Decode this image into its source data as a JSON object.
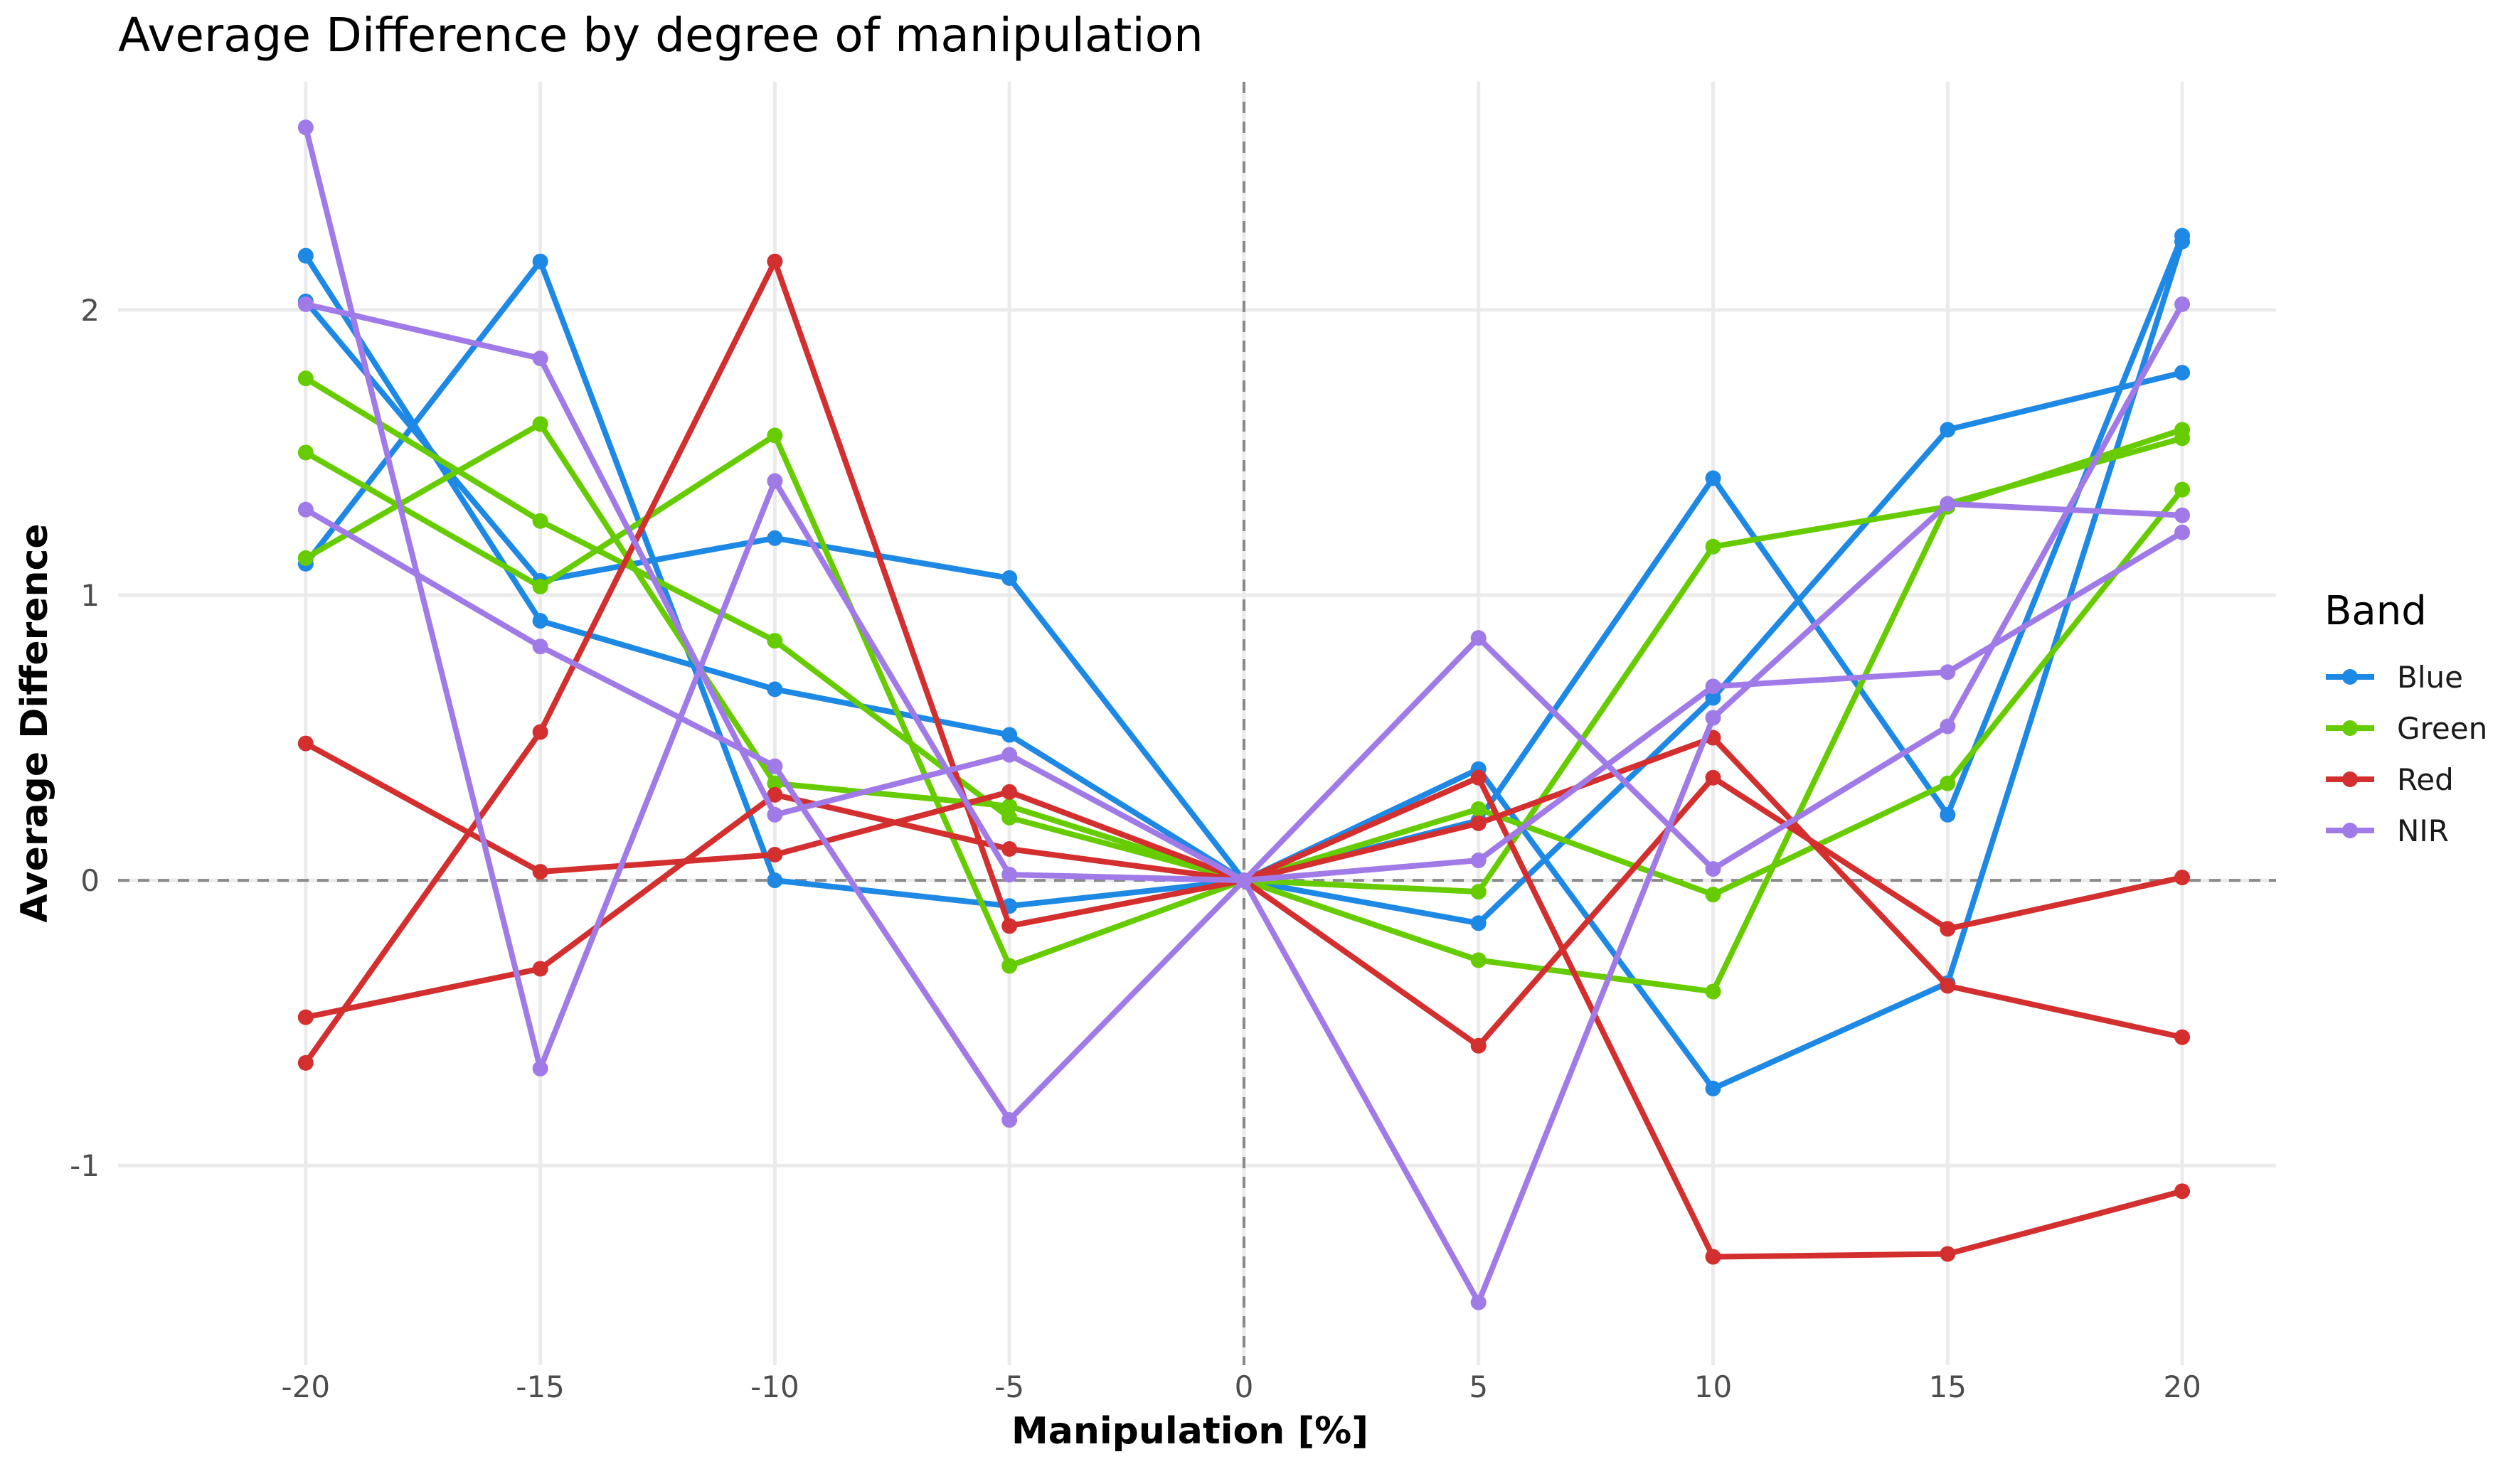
{
  "chart_data": {
    "type": "line",
    "title": "Average Difference by degree of manipulation",
    "xlabel": "Manipulation [%]",
    "ylabel": "Average Difference",
    "x": [
      -20,
      -15,
      -10,
      -5,
      0,
      5,
      10,
      15,
      20
    ],
    "x_ticks": [
      "-20",
      "-15",
      "-10",
      "-5",
      "0",
      "5",
      "10",
      "15",
      "20"
    ],
    "y_ticks": [
      {
        "value": -1,
        "label": "-1"
      },
      {
        "value": 0,
        "label": "0"
      },
      {
        "value": 1,
        "label": "1"
      },
      {
        "value": 2,
        "label": "2"
      }
    ],
    "xlim": [
      -24,
      22
    ],
    "ylim": [
      -1.7,
      2.8
    ],
    "grid": true,
    "reference_lines": {
      "x": 0,
      "y": 0
    },
    "legend": {
      "title": "Band",
      "placement": "right",
      "entries": [
        {
          "label": "Blue",
          "color": "#1e88e5"
        },
        {
          "label": "Green",
          "color": "#66cc00"
        },
        {
          "label": "Red",
          "color": "#d32f2f"
        },
        {
          "label": "NIR",
          "color": "#a07be8"
        }
      ]
    },
    "series": [
      {
        "band": "Blue",
        "color": "#1e88e5",
        "values": [
          2.19,
          0.91,
          0.67,
          0.51,
          0,
          0.21,
          1.41,
          0.23,
          2.26
        ]
      },
      {
        "band": "Blue",
        "color": "#1e88e5",
        "values": [
          2.03,
          1.05,
          1.2,
          1.06,
          0,
          -0.15,
          0.64,
          1.58,
          1.78
        ]
      },
      {
        "band": "Blue",
        "color": "#1e88e5",
        "values": [
          1.11,
          2.17,
          0.0,
          -0.09,
          0,
          0.39,
          -0.73,
          -0.36,
          2.24
        ]
      },
      {
        "band": "Green",
        "color": "#66cc00",
        "values": [
          1.76,
          1.26,
          0.84,
          0.22,
          0,
          -0.04,
          1.17,
          1.31,
          1.58
        ]
      },
      {
        "band": "Green",
        "color": "#66cc00",
        "values": [
          1.5,
          1.03,
          1.56,
          -0.3,
          0,
          0.25,
          -0.05,
          0.34,
          1.37
        ]
      },
      {
        "band": "Green",
        "color": "#66cc00",
        "values": [
          1.13,
          1.6,
          0.34,
          0.26,
          0,
          -0.28,
          -0.39,
          1.32,
          1.55
        ]
      },
      {
        "band": "Red",
        "color": "#d32f2f",
        "values": [
          0.48,
          0.03,
          0.09,
          0.31,
          0,
          0.2,
          0.5,
          -0.37,
          -0.55
        ]
      },
      {
        "band": "Red",
        "color": "#d32f2f",
        "values": [
          -0.48,
          -0.31,
          0.3,
          0.11,
          0,
          -0.58,
          0.36,
          -0.17,
          0.01
        ]
      },
      {
        "band": "Red",
        "color": "#d32f2f",
        "values": [
          -0.64,
          0.52,
          2.17,
          -0.16,
          0,
          0.36,
          -1.32,
          -1.31,
          -1.09
        ]
      },
      {
        "band": "NIR",
        "color": "#a07be8",
        "values": [
          2.64,
          -0.66,
          1.4,
          0.02,
          0,
          0.07,
          0.68,
          0.73,
          1.22
        ]
      },
      {
        "band": "NIR",
        "color": "#a07be8",
        "values": [
          2.02,
          1.83,
          0.23,
          0.44,
          0,
          0.85,
          0.04,
          0.54,
          2.02
        ]
      },
      {
        "band": "NIR",
        "color": "#a07be8",
        "values": [
          1.3,
          0.82,
          0.4,
          -0.84,
          0,
          -1.48,
          0.57,
          1.32,
          1.28
        ]
      }
    ]
  }
}
